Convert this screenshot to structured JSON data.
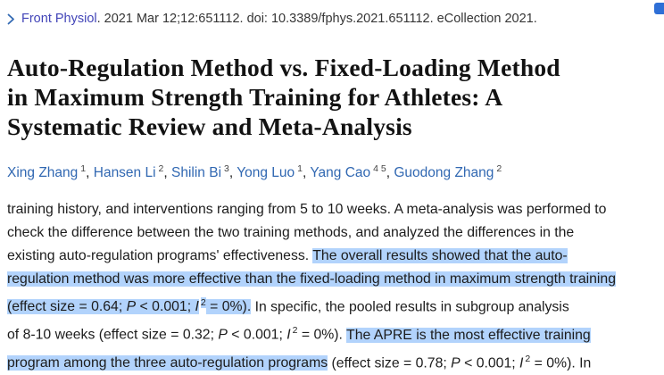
{
  "colors": {
    "text": "#1c1c1c",
    "link": "#3168b2",
    "journal_link": "#4245b8",
    "affiliation": "#444444",
    "highlight": "#b2d3fc",
    "corner_button": "#2e6fd6",
    "background": "#ffffff"
  },
  "icons": {
    "journal_expand_chevron": "chevron-right"
  },
  "citation": {
    "journal_label": "Front Physiol",
    "details": ". 2021 Mar 12;12:651112. doi: 10.3389/fphys.2021.651112. eCollection 2021."
  },
  "article": {
    "title": "Auto-Regulation Method vs. Fixed-Loading Method in Maximum Strength Training for Athletes: A Systematic Review and Meta-Analysis",
    "title_lines": [
      "Auto-Regulation Method vs. Fixed-Loading Method",
      "in Maximum Strength Training for Athletes: A",
      "Systematic Review and Meta-Analysis"
    ],
    "authors": [
      {
        "name": "Xing Zhang",
        "affiliations": "1"
      },
      {
        "name": "Hansen Li",
        "affiliations": "2"
      },
      {
        "name": "Shilin Bi",
        "affiliations": "3"
      },
      {
        "name": "Yong Luo",
        "affiliations": "1"
      },
      {
        "name": "Yang Cao",
        "affiliations": "4 5"
      },
      {
        "name": "Guodong Zhang",
        "affiliations": "2"
      }
    ],
    "abstract_lines": [
      [
        {
          "t": "training history, and interventions ranging from 5 to 10 weeks. A meta-analysis was performed to"
        }
      ],
      [
        {
          "t": "check the difference between the two training methods, and analyzed the differences in the"
        }
      ],
      [
        {
          "t": "existing auto-regulation programs' effectiveness. "
        },
        {
          "t": "The overall results showed that the auto-",
          "hl": true
        }
      ],
      [
        {
          "t": "regulation method was more effective than the fixed-loading method in maximum strength training",
          "hl": true
        }
      ],
      [
        {
          "t": "(effect size = 0.64; ",
          "hl": true
        },
        {
          "t": "P",
          "hl": true,
          "i": true
        },
        {
          "t": " < 0.001; ",
          "hl": true
        },
        {
          "t": "I",
          "hl": true,
          "i": true
        },
        {
          "t": "2",
          "hl": true,
          "sup": true
        },
        {
          "t": " = 0%).",
          "hl": true
        },
        {
          "t": " In specific, the pooled results in subgroup analysis"
        }
      ],
      [
        {
          "t": "of 8-10 weeks (effect size = 0.32; "
        },
        {
          "t": "P",
          "i": true
        },
        {
          "t": " < 0.001; "
        },
        {
          "t": "I",
          "i": true
        },
        {
          "t": "2",
          "sup": true
        },
        {
          "t": " = 0%). "
        },
        {
          "t": "The APRE is the most effective training",
          "hl": true
        }
      ],
      [
        {
          "t": "program among the three auto-regulation programs",
          "hl": true
        },
        {
          "t": " (effect size = 0.78; "
        },
        {
          "t": "P",
          "i": true
        },
        {
          "t": " < 0.001; "
        },
        {
          "t": "I",
          "i": true
        },
        {
          "t": "2",
          "sup": true
        },
        {
          "t": " = 0%). In"
        }
      ]
    ]
  }
}
